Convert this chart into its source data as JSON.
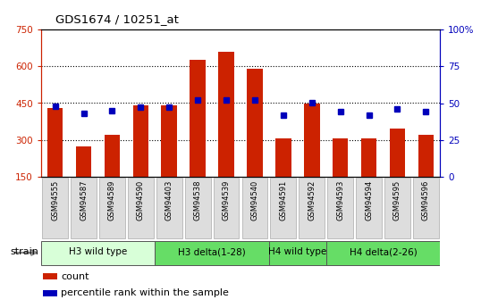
{
  "title": "GDS1674 / 10251_at",
  "samples": [
    "GSM94555",
    "GSM94587",
    "GSM94589",
    "GSM94590",
    "GSM94403",
    "GSM94538",
    "GSM94539",
    "GSM94540",
    "GSM94591",
    "GSM94592",
    "GSM94593",
    "GSM94594",
    "GSM94595",
    "GSM94596"
  ],
  "counts": [
    430,
    275,
    320,
    440,
    440,
    625,
    660,
    590,
    305,
    450,
    305,
    305,
    345,
    320
  ],
  "percentiles": [
    48,
    43,
    45,
    47,
    47,
    52,
    52,
    52,
    42,
    50,
    44,
    42,
    46,
    44
  ],
  "groups": [
    {
      "label": "H3 wild type",
      "start": 0,
      "end": 4,
      "color": "#d8ffd8"
    },
    {
      "label": "H3 delta(1-28)",
      "start": 4,
      "end": 8,
      "color": "#66dd66"
    },
    {
      "label": "H4 wild type",
      "start": 8,
      "end": 10,
      "color": "#66dd66"
    },
    {
      "label": "H4 delta(2-26)",
      "start": 10,
      "end": 14,
      "color": "#66dd66"
    }
  ],
  "ylim_left": [
    150,
    750
  ],
  "ylim_right": [
    0,
    100
  ],
  "yticks_left": [
    150,
    300,
    450,
    600,
    750
  ],
  "yticks_right": [
    0,
    25,
    50,
    75,
    100
  ],
  "grid_yticks": [
    300,
    450,
    600
  ],
  "bar_color": "#cc2200",
  "dot_color": "#0000bb",
  "background_color": "#ffffff",
  "strain_label": "strain",
  "legend_count": "count",
  "legend_percentile": "percentile rank within the sample",
  "tick_label_color": "#888888",
  "tick_box_color": "#dddddd"
}
